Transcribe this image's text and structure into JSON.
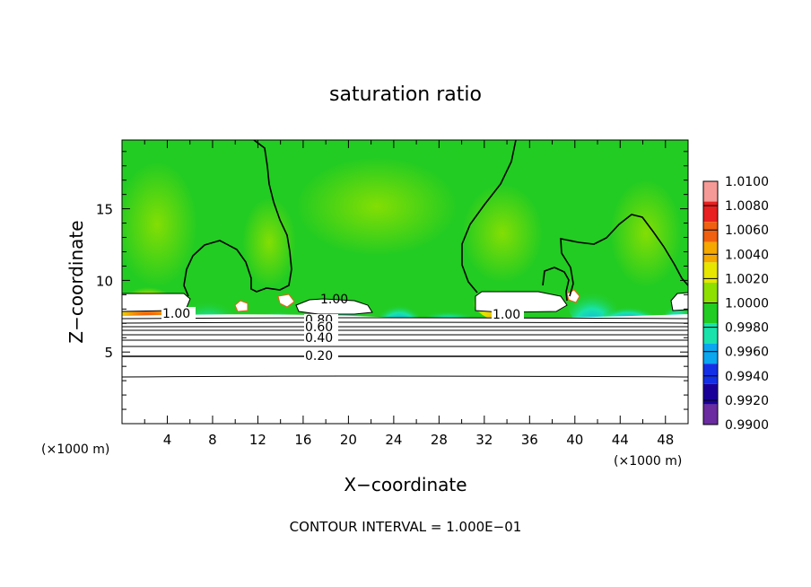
{
  "chart_data": {
    "type": "heatmap",
    "title": "saturation ratio",
    "xlabel": "X−coordinate",
    "ylabel": "Z−coordinate",
    "x_unit_label": "(×1000 m)",
    "y_unit_label": "(×1000 m)",
    "xlim": [
      0,
      50
    ],
    "ylim": [
      0,
      19.8
    ],
    "x_ticks": [
      4,
      8,
      12,
      16,
      20,
      24,
      28,
      32,
      36,
      40,
      44,
      48
    ],
    "y_ticks": [
      5,
      10,
      15
    ],
    "footer": "CONTOUR INTERVAL = 1.000E−01",
    "contour_interval": 0.1,
    "contour_labels": [
      {
        "text": "1.00",
        "x": 5.0,
        "y": 7.7
      },
      {
        "text": "1.00",
        "x": 19.0,
        "y": 8.6
      },
      {
        "text": "1.00",
        "x": 34.0,
        "y": 7.6
      },
      {
        "text": "0.80",
        "x": 17.6,
        "y": 7.0
      },
      {
        "text": "0.60",
        "x": 17.6,
        "y": 6.5
      },
      {
        "text": "0.40",
        "x": 17.6,
        "y": 5.7
      },
      {
        "text": "0.20",
        "x": 17.6,
        "y": 4.7
      }
    ],
    "colorbar": {
      "levels": [
        "1.0100",
        "1.0080",
        "1.0060",
        "1.0040",
        "1.0020",
        "1.0000",
        "0.9980",
        "0.9960",
        "0.9940",
        "0.9920",
        "0.9900"
      ],
      "colors": [
        "#f59a96",
        "#e82020",
        "#f06010",
        "#f5a800",
        "#e6e600",
        "#8ee000",
        "#22cc22",
        "#19e3aa",
        "#0aa6f0",
        "#1430e6",
        "#1a0099",
        "#6a2ca0"
      ]
    },
    "subsaturated_levels": [
      0.1,
      0.2,
      0.3,
      0.4,
      0.5,
      0.6,
      0.7,
      0.8,
      0.9
    ]
  }
}
